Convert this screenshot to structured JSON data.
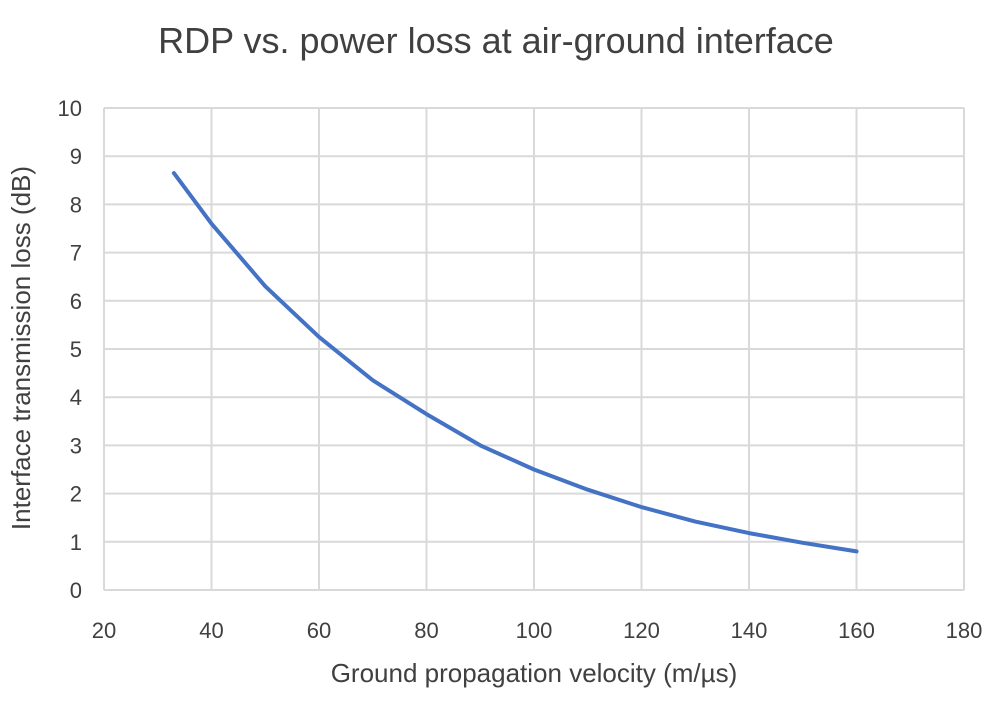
{
  "chart_data": {
    "type": "line",
    "title": "RDP vs. power loss at air-ground interface",
    "xlabel": "Ground propagation velocity (m/µs)",
    "ylabel": "Interface transmission loss (dB)",
    "xlim": [
      20,
      180
    ],
    "ylim": [
      0,
      10
    ],
    "x_ticks": [
      20,
      40,
      60,
      80,
      100,
      120,
      140,
      160,
      180
    ],
    "y_ticks": [
      0,
      1,
      2,
      3,
      4,
      5,
      6,
      7,
      8,
      9,
      10
    ],
    "grid": true,
    "legend": "none",
    "series": [
      {
        "color": "#4472c4",
        "x": [
          33,
          40,
          50,
          60,
          70,
          80,
          90,
          100,
          110,
          120,
          130,
          140,
          150,
          160
        ],
        "y": [
          8.65,
          7.6,
          6.3,
          5.25,
          4.35,
          3.65,
          3.0,
          2.5,
          2.08,
          1.72,
          1.42,
          1.18,
          0.98,
          0.8
        ]
      }
    ]
  }
}
